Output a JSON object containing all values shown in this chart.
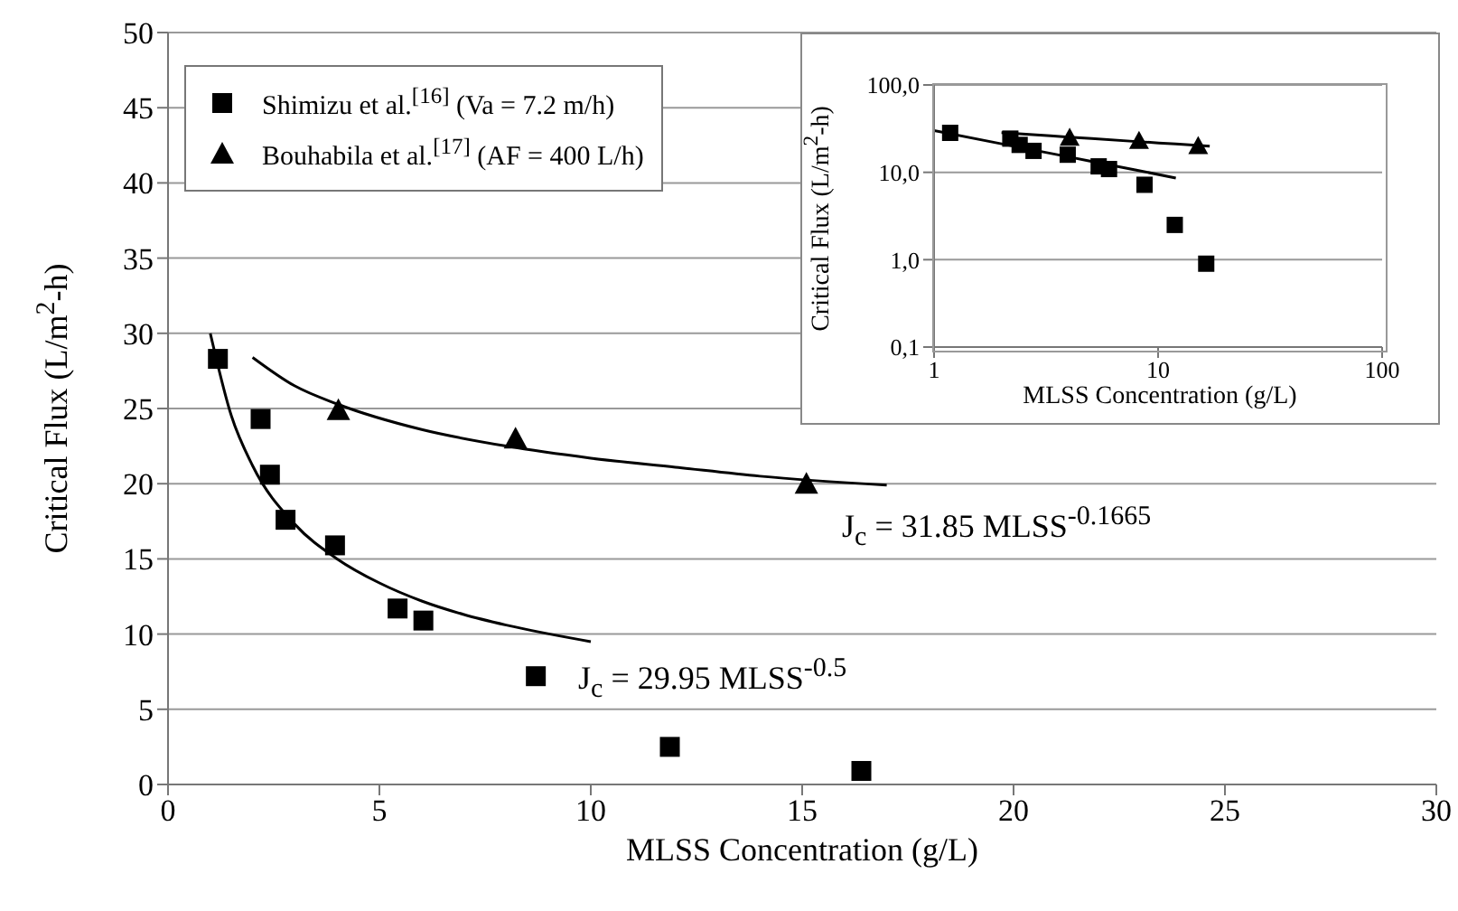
{
  "chart_data": [
    {
      "type": "scatter",
      "xlabel": "MLSS Concentration (g/L)",
      "ylabel": "Critical Flux (L/m$^{2}$-h)",
      "xlim": [
        0,
        30
      ],
      "xticks": [
        0,
        5,
        10,
        15,
        20,
        25,
        30
      ],
      "ylim": [
        0,
        50
      ],
      "yticks": [
        0,
        5,
        10,
        15,
        20,
        25,
        30,
        35,
        40,
        45,
        50
      ],
      "grid": "y",
      "legend": "top left",
      "series": [
        {
          "name": "Shimizu et al.$^{[16]}$ (Va = 7.2 m/h)",
          "color": "#000000",
          "marker": "square",
          "x": [
            1.18,
            2.19,
            2.41,
            2.78,
            3.95,
            5.43,
            6.04,
            8.7,
            11.87,
            16.4
          ],
          "values": [
            28.3,
            24.3,
            20.6,
            17.6,
            15.9,
            11.7,
            10.9,
            7.2,
            2.5,
            0.9
          ]
        },
        {
          "name": "Bouhabila et al.$^{[17]}$ (AF = 400 L/h)",
          "color": "#000000",
          "marker": "triangle",
          "x": [
            4.03,
            8.22,
            15.1
          ],
          "values": [
            24.9,
            23.0,
            20.0
          ]
        },
        {
          "type": "line",
          "color": "#000000",
          "x": [
            1.0,
            1.5,
            2,
            3,
            4,
            5,
            6,
            7,
            8,
            10
          ],
          "values": [
            30.0,
            24.5,
            21.2,
            17.3,
            15.0,
            13.4,
            12.2,
            11.3,
            10.6,
            9.5
          ]
        },
        {
          "type": "line",
          "color": "#000000",
          "x": [
            2,
            3,
            4,
            6,
            8,
            10,
            12,
            14,
            17
          ],
          "values": [
            28.4,
            26.5,
            25.3,
            23.6,
            22.5,
            21.7,
            21.1,
            20.5,
            19.9
          ]
        }
      ],
      "annotations": [
        "J$_{c}$ = 29.95 MLSS$^{-0.5}$",
        "J$_{c}$ = 31.85 MLSS$^{-0.1665}$"
      ]
    },
    {
      "type": "scatter",
      "xlabel": "MLSS Concentration (g/L)",
      "ylabel": "Critical Flux (L/m$^{2}$-h)",
      "log": "xy",
      "xlim": [
        1,
        100
      ],
      "xticks": [
        1,
        10,
        100
      ],
      "ylim": [
        0.1,
        100
      ],
      "yticks": [
        {
          "value": 0.1,
          "label": "0,1"
        },
        {
          "value": 1,
          "label": "1,0"
        },
        {
          "value": 10,
          "label": "10,0"
        },
        {
          "value": 100,
          "label": "100,0"
        }
      ],
      "grid": "y",
      "series": [
        {
          "color": "#000000",
          "marker": "square",
          "x": [
            1.18,
            2.19,
            2.41,
            2.78,
            3.95,
            5.43,
            6.04,
            8.7,
            11.87,
            16.4
          ],
          "values": [
            28.3,
            24.3,
            20.6,
            17.6,
            15.9,
            11.7,
            10.9,
            7.2,
            2.5,
            0.9
          ]
        },
        {
          "color": "#000000",
          "marker": "triangle",
          "x": [
            4.03,
            8.22,
            15.1
          ],
          "values": [
            24.9,
            23.0,
            20.0
          ]
        },
        {
          "type": "line",
          "color": "#000000",
          "x": [
            1,
            2,
            4,
            8,
            12
          ],
          "values": [
            30.0,
            21.2,
            15.0,
            10.6,
            8.6
          ]
        },
        {
          "type": "line",
          "color": "#000000",
          "x": [
            2,
            4,
            8,
            12,
            17
          ],
          "values": [
            28.4,
            25.3,
            22.5,
            21.1,
            19.9
          ]
        }
      ]
    }
  ]
}
